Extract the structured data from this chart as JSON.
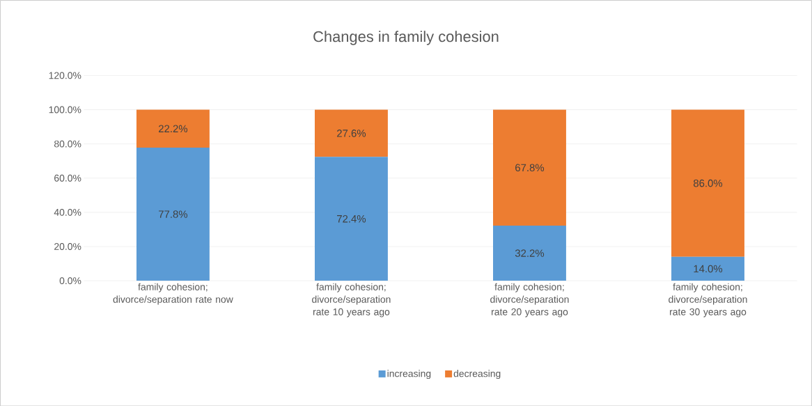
{
  "chart_data": {
    "type": "bar",
    "stacked": true,
    "title": "Changes in family cohesion",
    "categories": [
      "family cohesion; divorce/separation rate now",
      "family cohesion; divorce/separation rate 10 years ago",
      "family cohesion; divorce/separation rate 20 years ago",
      "family cohesion; divorce/separation rate 30 years ago"
    ],
    "series": [
      {
        "name": "increasing",
        "color": "#5b9bd5",
        "values": [
          77.8,
          72.4,
          32.2,
          14.0
        ],
        "value_labels": [
          "77.8%",
          "72.4%",
          "32.2%",
          "14.0%"
        ]
      },
      {
        "name": "decreasing",
        "color": "#ed7d31",
        "values": [
          22.2,
          27.6,
          67.8,
          86.0
        ],
        "value_labels": [
          "22.2%",
          "27.6%",
          "67.8%",
          "86.0%"
        ]
      }
    ],
    "ylim": [
      0,
      120
    ],
    "yticks": [
      {
        "value": 0,
        "label": "0.0%"
      },
      {
        "value": 20,
        "label": "20.0%"
      },
      {
        "value": 40,
        "label": "40.0%"
      },
      {
        "value": 60,
        "label": "60.0%"
      },
      {
        "value": 80,
        "label": "80.0%"
      },
      {
        "value": 100,
        "label": "100.0%"
      },
      {
        "value": 120,
        "label": "120.0%"
      }
    ],
    "grid": "y",
    "legend": "bottom"
  }
}
